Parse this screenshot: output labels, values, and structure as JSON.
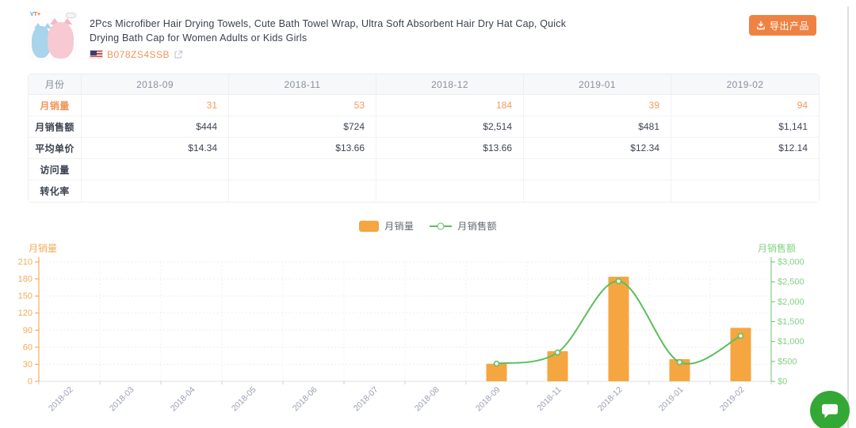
{
  "product": {
    "image": "hair-towels-photo",
    "title": "2Pcs Microfiber Hair Drying Towels, Cute Bath Towel Wrap, Ultra Soft Absorbent Hair Dry Hat Cap, Quick Drying Bath Cap for Women Adults or Kids Girls",
    "asin": "B078ZS4SSB",
    "flag_icon": "us-flag-icon"
  },
  "export_button": {
    "label": "导出产品",
    "icon": "download-icon",
    "color": "#ef8243"
  },
  "table": {
    "columns": [
      "月份",
      "2018-09",
      "2018-11",
      "2018-12",
      "2019-01",
      "2019-02"
    ],
    "rows": [
      {
        "label": "月销量",
        "highlight": true,
        "values": [
          "31",
          "53",
          "184",
          "39",
          "94"
        ]
      },
      {
        "label": "月销售额",
        "highlight": false,
        "values": [
          "$444",
          "$724",
          "$2,514",
          "$481",
          "$1,141"
        ]
      },
      {
        "label": "平均单价",
        "highlight": false,
        "values": [
          "$14.34",
          "$13.66",
          "$13.66",
          "$12.34",
          "$12.14"
        ]
      },
      {
        "label": "访问量",
        "highlight": false,
        "values": [
          "",
          "",
          "",
          "",
          ""
        ]
      },
      {
        "label": "转化率",
        "highlight": false,
        "values": [
          "",
          "",
          "",
          "",
          ""
        ]
      }
    ]
  },
  "legend": [
    {
      "label": "月销量",
      "type": "bar",
      "color": "#f5a640"
    },
    {
      "label": "月销售额",
      "type": "line",
      "color": "#5abf5c"
    }
  ],
  "chart_data": {
    "type": "bar+line",
    "categories": [
      "2018-02",
      "2018-03",
      "2018-04",
      "2018-05",
      "2018-06",
      "2018-07",
      "2018-08",
      "2018-09",
      "2018-11",
      "2018-12",
      "2019-01",
      "2019-02"
    ],
    "series": [
      {
        "name": "月销量",
        "type": "bar",
        "axis": "left",
        "color": "#f5a640",
        "values": [
          null,
          null,
          null,
          null,
          null,
          null,
          null,
          31,
          53,
          184,
          39,
          94
        ]
      },
      {
        "name": "月销售额",
        "type": "line",
        "axis": "right",
        "color": "#5abf5c",
        "values": [
          null,
          null,
          null,
          null,
          null,
          null,
          null,
          444,
          724,
          2514,
          481,
          1141
        ]
      }
    ],
    "left_axis": {
      "name": "月销量",
      "min": 0,
      "max": 210,
      "ticks": [
        0,
        30,
        60,
        90,
        120,
        150,
        180,
        210
      ],
      "label_color": "#f4ab58",
      "line_color": "#f0a13c"
    },
    "right_axis": {
      "name": "月销售额",
      "min": 0,
      "max": 3000,
      "tick_labels": [
        "$0",
        "$500",
        "$1,000",
        "$1,500",
        "$2,000",
        "$2,500",
        "$3,000"
      ],
      "label_color": "#83d185",
      "line_color": "#68c56a"
    },
    "x_label_color": "#9aa0b2",
    "grid": true,
    "legend_position": "top-center"
  },
  "chat_button": {
    "icon": "chat-bubble-icon",
    "color": "#34a834"
  }
}
